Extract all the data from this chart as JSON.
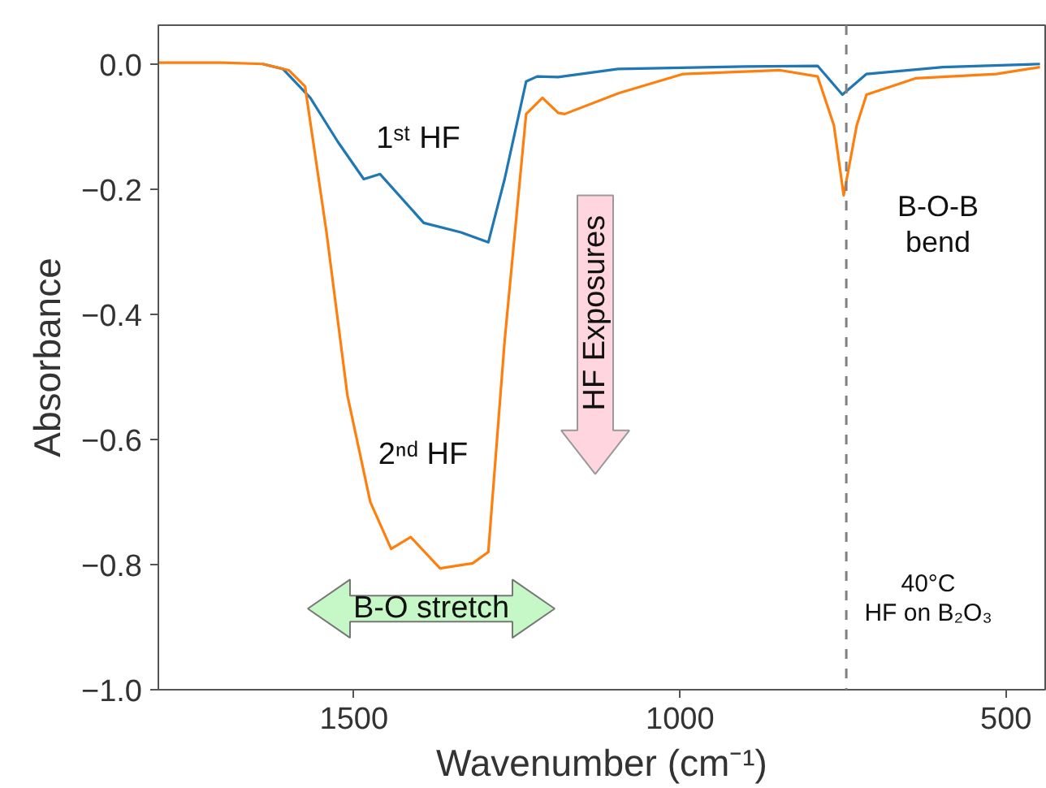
{
  "chart_data": {
    "type": "line",
    "xlabel": "Wavenumber (cm⁻¹)",
    "ylabel": "Absorbance",
    "xlim": [
      1800,
      440
    ],
    "ylim": [
      -1.0,
      0.062
    ],
    "xticks": [
      1500,
      1000,
      500
    ],
    "yticks": [
      {
        "value": -1.0,
        "label": "−1.0"
      },
      {
        "value": -0.8,
        "label": "−0.8"
      },
      {
        "value": -0.6,
        "label": "−0.6"
      },
      {
        "value": -0.4,
        "label": "−0.4"
      },
      {
        "value": -0.2,
        "label": "−0.2"
      },
      {
        "value": 0.0,
        "label": "0.0"
      }
    ],
    "grid": false,
    "marker": "none",
    "line_style": "solid",
    "series": [
      {
        "color": "#1f77b4",
        "x": [
          1640,
          1609,
          1567,
          1525,
          1485,
          1460,
          1393,
          1336,
          1294,
          1269,
          1236,
          1219,
          1187,
          1095,
          900,
          789,
          751,
          714,
          597,
          448
        ],
        "values": [
          0.0,
          -0.008,
          -0.054,
          -0.124,
          -0.184,
          -0.176,
          -0.254,
          -0.269,
          -0.285,
          -0.184,
          -0.028,
          -0.02,
          -0.021,
          -0.008,
          -0.004,
          -0.003,
          -0.049,
          -0.016,
          -0.005,
          0.0
        ]
      },
      {
        "color": "#ff7f0e",
        "x": [
          1800,
          1700,
          1640,
          1600,
          1575,
          1542,
          1510,
          1475,
          1443,
          1413,
          1368,
          1318,
          1294,
          1269,
          1236,
          1211,
          1187,
          1177,
          1095,
          995,
          846,
          789,
          764,
          749,
          729,
          714,
          639,
          515,
          448
        ],
        "values": [
          0.002,
          0.002,
          0.0,
          -0.01,
          -0.036,
          -0.27,
          -0.53,
          -0.7,
          -0.775,
          -0.756,
          -0.806,
          -0.798,
          -0.78,
          -0.443,
          -0.08,
          -0.054,
          -0.078,
          -0.08,
          -0.047,
          -0.016,
          -0.01,
          -0.02,
          -0.098,
          -0.21,
          -0.098,
          -0.049,
          -0.023,
          -0.016,
          -0.005
        ]
      }
    ],
    "ref_lines": [
      {
        "axis": "x",
        "value": 745,
        "color": "#808080",
        "line_style": "dashed"
      }
    ],
    "annotations": [
      "1ˢᵗ HF",
      "2ⁿᵈ HF",
      "HF Exposures",
      "B-O stretch",
      "B-O-B\nbend",
      "40°C\nHF on B₂O₃"
    ]
  }
}
